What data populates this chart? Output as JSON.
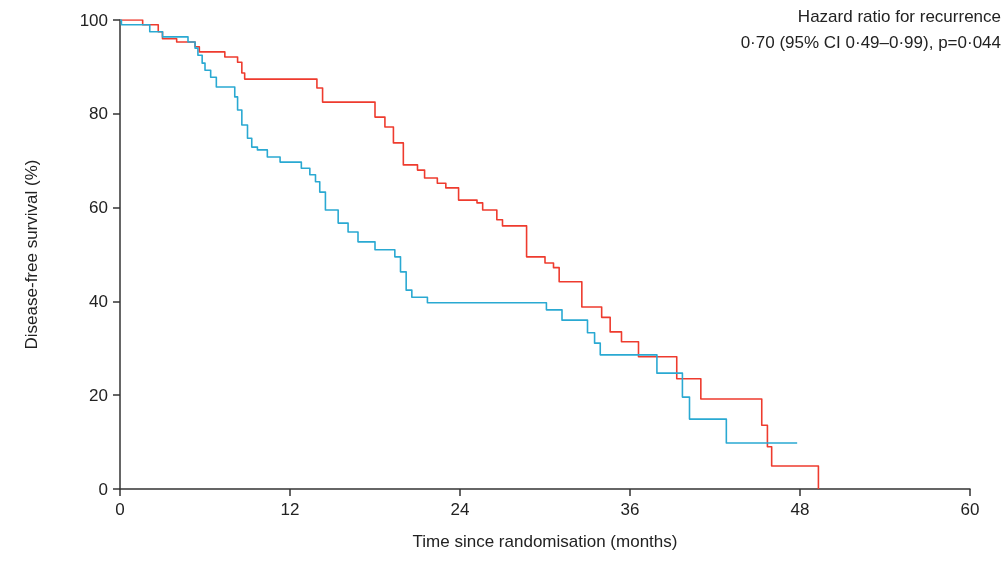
{
  "chart_data": {
    "type": "step",
    "xlabel": "Time since randomisation (months)",
    "ylabel": "Disease-free survival (%)",
    "annotations": [
      "Hazard ratio for recurrence",
      "0·70 (95% CI 0·49–0·99), p=0·044"
    ],
    "xlim": [
      0,
      60
    ],
    "xticks": [
      0,
      12,
      24,
      36,
      48,
      60
    ],
    "ylim": [
      0,
      100
    ],
    "yticks": [
      0,
      20,
      40,
      60,
      80,
      100
    ],
    "marker": "none",
    "line_style": "solid",
    "series": [
      {
        "color": "#ee3b2e",
        "x": [
          0,
          1.6,
          2.7,
          3.0,
          4.0,
          5.3,
          5.6,
          7.4,
          8.3,
          8.6,
          8.8,
          13.9,
          14.3,
          18.0,
          18.7,
          19.3,
          20.0,
          21.0,
          21.5,
          22.4,
          23.0,
          23.9,
          25.2,
          25.6,
          26.6,
          27.0,
          28.7,
          30.0,
          30.6,
          31.0,
          32.6,
          34.0,
          34.6,
          35.4,
          36.6,
          39.3,
          41.0,
          45.3,
          45.7,
          46.0,
          49.3
        ],
        "values": [
          100,
          99,
          97.5,
          96,
          95.3,
          94.3,
          93.2,
          92.1,
          91,
          88.7,
          87.4,
          85.5,
          82.5,
          79.3,
          77.2,
          73.8,
          69.1,
          68,
          66.3,
          65.2,
          64.2,
          61.6,
          61,
          59.5,
          57.4,
          56.1,
          49.5,
          48.2,
          47.2,
          44.2,
          38.8,
          36.6,
          33.5,
          31.4,
          28.2,
          23.5,
          19.2,
          13.6,
          9.0,
          4.9,
          0
        ]
      },
      {
        "color": "#2aa9d2",
        "x": [
          0,
          0.1,
          2.1,
          3.0,
          4.8,
          5.3,
          5.5,
          5.8,
          6.0,
          6.4,
          6.8,
          8.1,
          8.3,
          8.6,
          9.0,
          9.3,
          9.7,
          10.4,
          11.3,
          12.8,
          13.4,
          13.8,
          14.1,
          14.5,
          15.4,
          16.1,
          16.8,
          18.0,
          19.4,
          19.8,
          20.2,
          20.6,
          21.7,
          30.1,
          31.2,
          33.0,
          33.5,
          33.9,
          37.9,
          39.7,
          40.2,
          42.8,
          47.8
        ],
        "values": [
          100,
          99,
          97.5,
          96.4,
          95.3,
          94,
          92.5,
          90.8,
          89.3,
          87.8,
          85.7,
          83.6,
          80.8,
          77.6,
          74.8,
          72.9,
          72.3,
          70.8,
          69.7,
          68.4,
          67,
          65.5,
          63.3,
          59.5,
          56.7,
          54.8,
          52.7,
          51,
          49.5,
          46.3,
          42.4,
          40.9,
          39.7,
          38.2,
          36,
          33.3,
          31.1,
          28.6,
          24.7,
          19.6,
          14.9,
          9.8,
          9.8
        ]
      }
    ]
  }
}
